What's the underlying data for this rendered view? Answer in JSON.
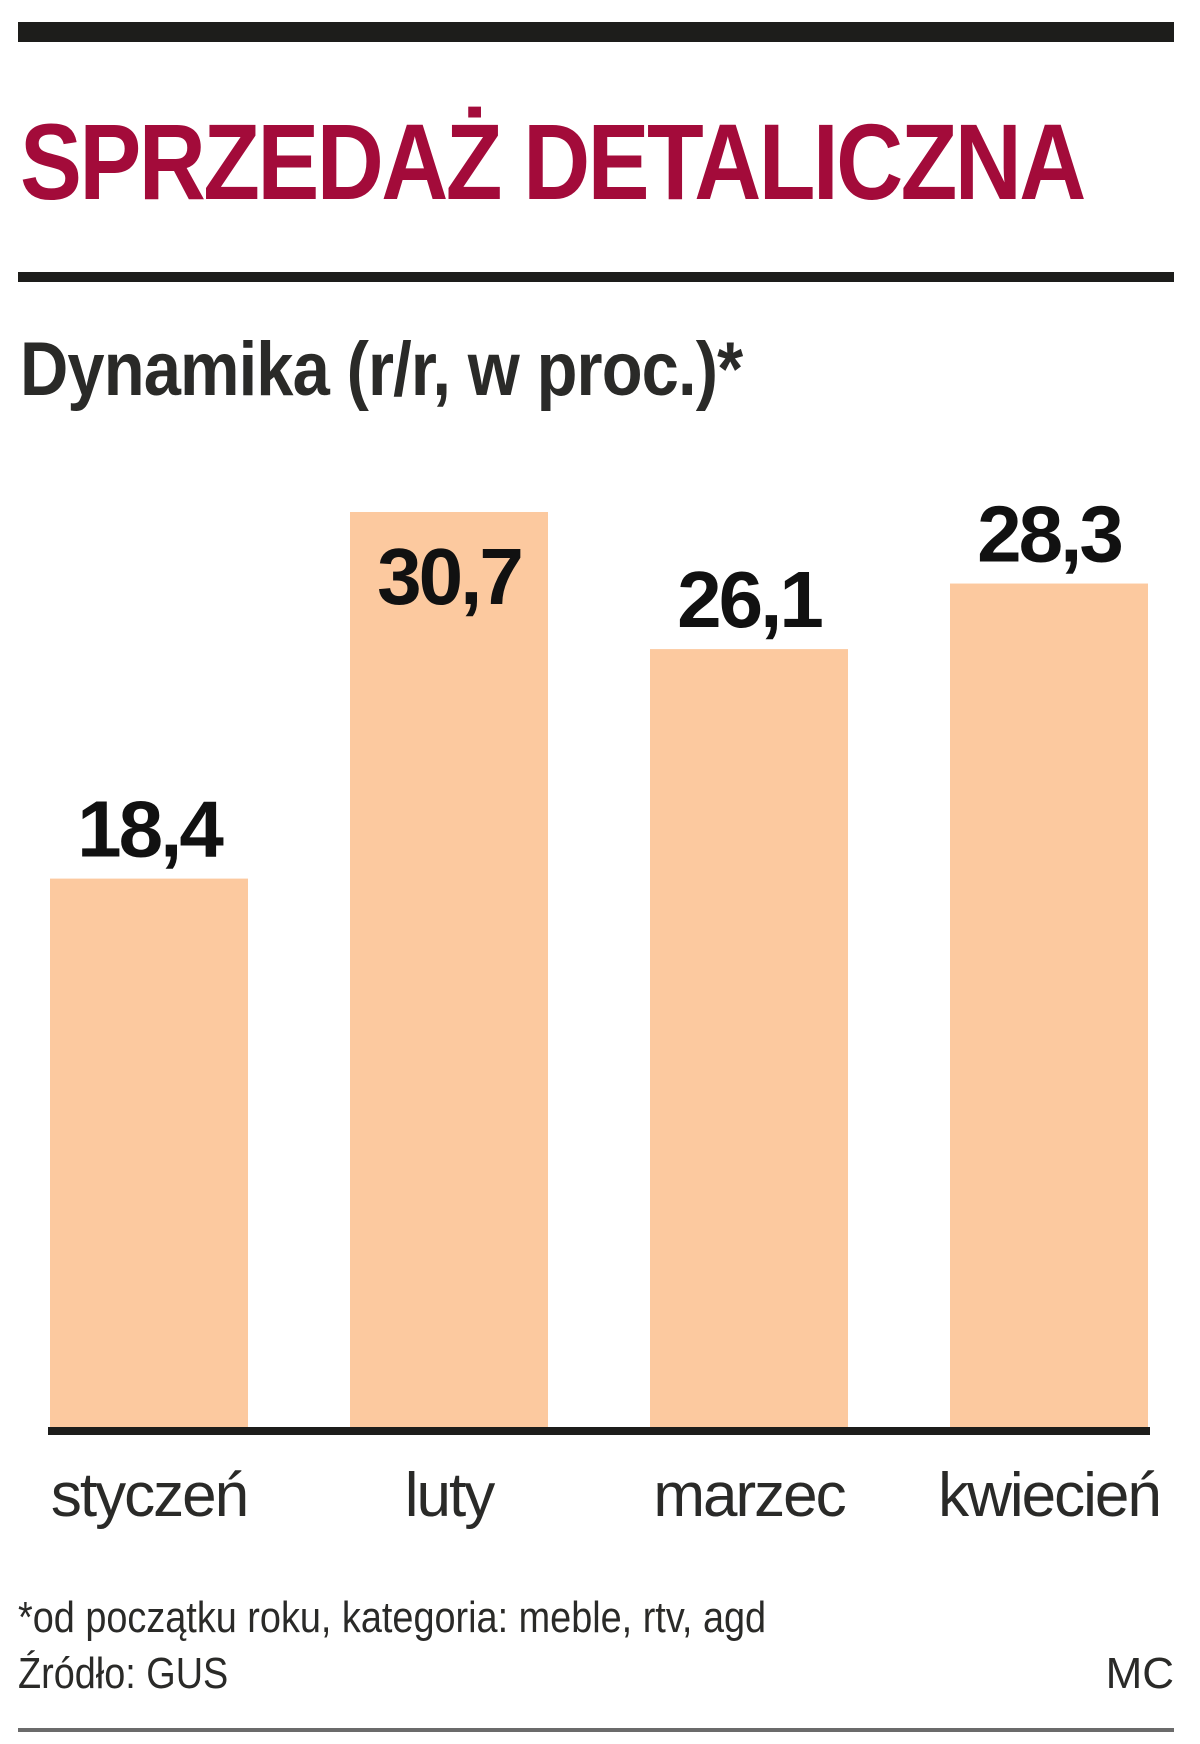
{
  "title": "SPRZEDAŻ DETALICZNA",
  "subtitle": "Dynamika (r/r, w proc.)*",
  "footnote": "*od początku roku, kategoria: meble, rtv, agd",
  "source": "Źródło: GUS",
  "author": "MC",
  "colors": {
    "title": "#a30b3a",
    "bar": "#fcc99f",
    "text": "#2a2a28",
    "rules": "#1d1d1b"
  },
  "chart_data": {
    "type": "bar",
    "title": "SPRZEDAŻ DETALICZNA",
    "subtitle": "Dynamika (r/r, w proc.)*",
    "categories": [
      "styczeń",
      "luty",
      "marzec",
      "kwiecień"
    ],
    "values": [
      18.4,
      30.7,
      26.1,
      28.3
    ],
    "value_labels": [
      "18,4",
      "30,7",
      "26,1",
      "28,3"
    ],
    "ylim": [
      0,
      30.7
    ],
    "grid": false,
    "legend": "none"
  }
}
